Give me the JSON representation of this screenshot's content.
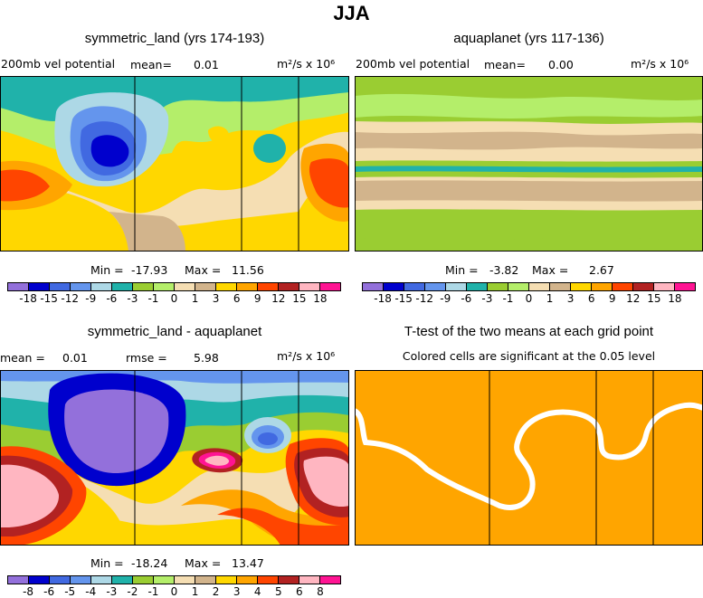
{
  "figure_title": "JJA",
  "panels": [
    {
      "title": "symmetric_land (yrs 174-193)",
      "left_label": "200mb  vel  potential",
      "mean_label": "mean=",
      "mean_value": "0.01",
      "units": "m²/s x 10⁶",
      "min_label": "Min = ",
      "min_value": "-17.93",
      "max_label": "Max =",
      "max_value": "11.56"
    },
    {
      "title": "aquaplanet (yrs 117-136)",
      "left_label": "200mb  vel  potential",
      "mean_label": "mean=",
      "mean_value": "0.00",
      "units": "m²/s x 10⁶",
      "min_label": "Min = ",
      "min_value": "-3.82",
      "max_label": "Max =",
      "max_value": "2.67"
    },
    {
      "title": "symmetric_land - aquaplanet",
      "mean_label": "mean =",
      "mean_value": "0.01",
      "rmse_label": "rmse =",
      "rmse_value": "5.98",
      "units": "m²/s x 10⁶",
      "min_label": "Min = ",
      "min_value": "-18.24",
      "max_label": "Max =",
      "max_value": "13.47"
    },
    {
      "title": "T-test of the two means at each grid point",
      "subtitle": "Colored cells are significant at the 0.05 level"
    }
  ],
  "chart_data": [
    {
      "type": "heatmap",
      "title": "symmetric_land (yrs 174-193)",
      "field": "200mb velocity potential",
      "units": "m2/s x 10^6",
      "mean": 0.01,
      "min": -17.93,
      "max": 11.56,
      "colorbar_ticks": [
        "-18",
        "-15",
        "-12",
        "-9",
        "-6",
        "-3",
        "-1",
        "0",
        "1",
        "3",
        "6",
        "9",
        "12",
        "15",
        "18"
      ]
    },
    {
      "type": "heatmap",
      "title": "aquaplanet (yrs 117-136)",
      "field": "200mb velocity potential",
      "units": "m2/s x 10^6",
      "mean": 0.0,
      "min": -3.82,
      "max": 2.67,
      "colorbar_ticks": [
        "-18",
        "-15",
        "-12",
        "-9",
        "-6",
        "-3",
        "-1",
        "0",
        "1",
        "3",
        "6",
        "9",
        "12",
        "15",
        "18"
      ]
    },
    {
      "type": "heatmap",
      "title": "symmetric_land - aquaplanet",
      "units": "m2/s x 10^6",
      "mean": 0.01,
      "rmse": 5.98,
      "min": -18.24,
      "max": 13.47,
      "colorbar_ticks": [
        "-8",
        "-6",
        "-5",
        "-4",
        "-3",
        "-2",
        "-1",
        "0",
        "1",
        "2",
        "3",
        "4",
        "5",
        "6",
        "8"
      ]
    },
    {
      "type": "heatmap",
      "title": "T-test of the two means at each grid point",
      "note": "Colored cells are significant at the 0.05 level"
    }
  ],
  "colors": {
    "palette": [
      "#9370db",
      "#0000cd",
      "#4169e1",
      "#6495ed",
      "#add8e6",
      "#20b2aa",
      "#9acd32",
      "#b4ee6a",
      "#f5deb3",
      "#d2b48c",
      "#ffd700",
      "#ffa500",
      "#ff4500",
      "#b22222",
      "#ffb6c1",
      "#ff1493"
    ],
    "significant": "#ffa500"
  }
}
